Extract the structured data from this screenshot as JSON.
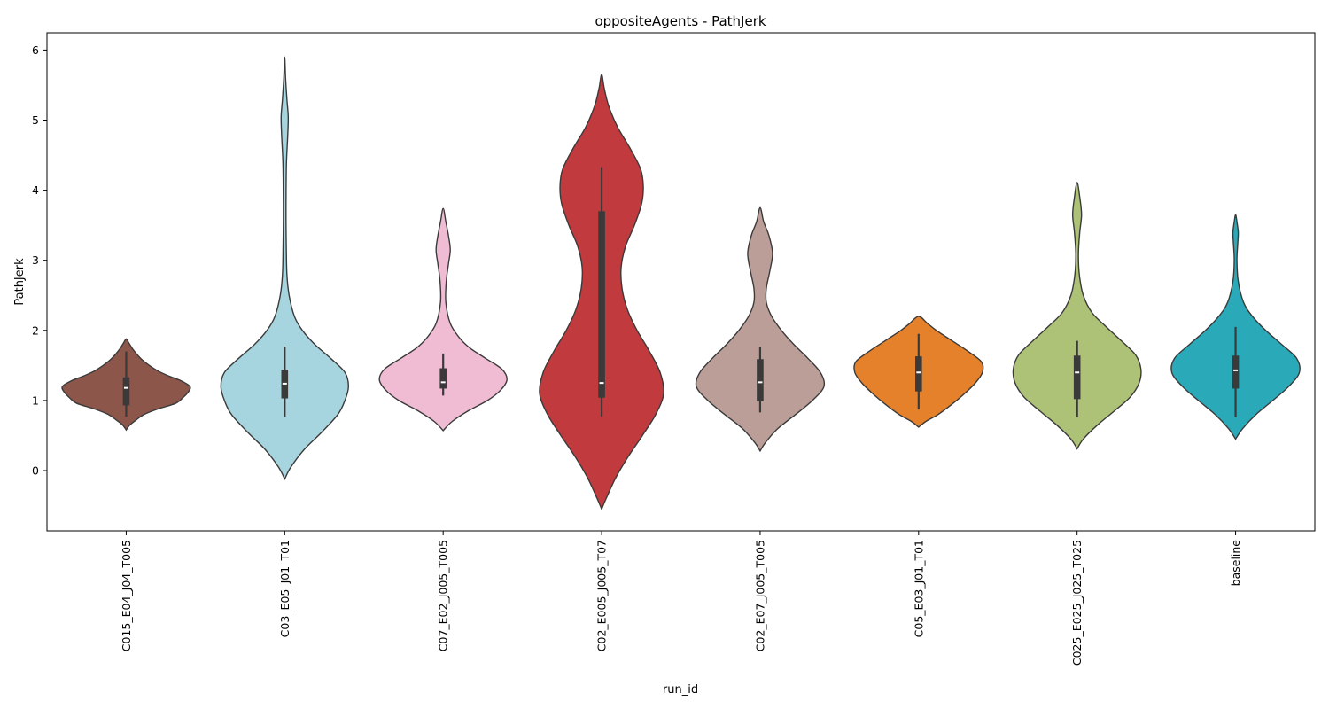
{
  "chart_data": {
    "type": "violin",
    "title": "oppositeAgents - PathJerk",
    "xlabel": "run_id",
    "ylabel": "PathJerk",
    "ylim": [
      -0.85,
      6.2
    ],
    "yticks": [
      "0",
      "1",
      "2",
      "3",
      "4",
      "5",
      "6"
    ],
    "grid": false,
    "categories": [
      "C015_E04_J04_T005",
      "C03_E05_J01_T01",
      "C07_E02_J005_T005",
      "C02_E005_J005_T07",
      "C02_E07_J005_T005",
      "C05_E03_J01_T01",
      "C025_E025_J025_T025",
      "baseline"
    ],
    "series": [
      {
        "color": "#8c564b",
        "range": [
          0.58,
          1.88
        ],
        "box": {
          "q1": 0.93,
          "median": 1.18,
          "q3": 1.33,
          "whisker_low": 0.77,
          "whisker_high": 1.7
        },
        "density": [
          [
            0.58,
            0
          ],
          [
            0.65,
            4
          ],
          [
            0.72,
            11
          ],
          [
            0.8,
            20
          ],
          [
            0.88,
            36
          ],
          [
            0.96,
            56
          ],
          [
            1.04,
            64
          ],
          [
            1.12,
            70
          ],
          [
            1.2,
            72
          ],
          [
            1.28,
            62
          ],
          [
            1.35,
            48
          ],
          [
            1.42,
            36
          ],
          [
            1.5,
            26
          ],
          [
            1.58,
            18
          ],
          [
            1.66,
            12
          ],
          [
            1.74,
            7
          ],
          [
            1.82,
            3
          ],
          [
            1.88,
            0
          ]
        ]
      },
      {
        "color": "#a6d5df",
        "range": [
          -0.12,
          5.9
        ],
        "box": {
          "q1": 1.03,
          "median": 1.24,
          "q3": 1.44,
          "whisker_low": 0.77,
          "whisker_high": 1.77
        },
        "density": [
          [
            -0.12,
            0
          ],
          [
            0.05,
            7
          ],
          [
            0.3,
            22
          ],
          [
            0.55,
            42
          ],
          [
            0.8,
            60
          ],
          [
            1.0,
            68
          ],
          [
            1.2,
            72
          ],
          [
            1.4,
            68
          ],
          [
            1.6,
            52
          ],
          [
            1.8,
            34
          ],
          [
            2.0,
            20
          ],
          [
            2.2,
            11
          ],
          [
            2.5,
            5
          ],
          [
            2.8,
            2.5
          ],
          [
            3.2,
            1.8
          ],
          [
            3.6,
            1.5
          ],
          [
            4.0,
            1.6
          ],
          [
            4.4,
            2
          ],
          [
            4.8,
            3.5
          ],
          [
            5.05,
            4
          ],
          [
            5.3,
            2.5
          ],
          [
            5.6,
            1
          ],
          [
            5.9,
            0
          ]
        ]
      },
      {
        "color": "#f0bcd4",
        "range": [
          0.57,
          3.74
        ],
        "box": {
          "q1": 1.17,
          "median": 1.26,
          "q3": 1.46,
          "whisker_low": 1.07,
          "whisker_high": 1.67
        },
        "density": [
          [
            0.57,
            0
          ],
          [
            0.7,
            10
          ],
          [
            0.85,
            28
          ],
          [
            1.0,
            50
          ],
          [
            1.15,
            65
          ],
          [
            1.3,
            72
          ],
          [
            1.45,
            66
          ],
          [
            1.6,
            48
          ],
          [
            1.75,
            30
          ],
          [
            1.9,
            18
          ],
          [
            2.1,
            8
          ],
          [
            2.4,
            3
          ],
          [
            2.7,
            3.5
          ],
          [
            2.95,
            6
          ],
          [
            3.15,
            8
          ],
          [
            3.35,
            6
          ],
          [
            3.55,
            3
          ],
          [
            3.74,
            0
          ]
        ]
      },
      {
        "color": "#c03a3e",
        "range": [
          -0.55,
          5.65
        ],
        "box": {
          "q1": 1.04,
          "median": 1.25,
          "q3": 3.7,
          "whisker_low": 0.77,
          "whisker_high": 4.33
        },
        "density": [
          [
            -0.55,
            0
          ],
          [
            -0.4,
            5
          ],
          [
            -0.1,
            16
          ],
          [
            0.2,
            30
          ],
          [
            0.5,
            46
          ],
          [
            0.8,
            61
          ],
          [
            1.1,
            70
          ],
          [
            1.4,
            66
          ],
          [
            1.7,
            54
          ],
          [
            2.0,
            40
          ],
          [
            2.3,
            29
          ],
          [
            2.6,
            23
          ],
          [
            2.9,
            22
          ],
          [
            3.2,
            27
          ],
          [
            3.5,
            37
          ],
          [
            3.8,
            45
          ],
          [
            4.05,
            47
          ],
          [
            4.3,
            44
          ],
          [
            4.6,
            32
          ],
          [
            4.9,
            18
          ],
          [
            5.2,
            8
          ],
          [
            5.45,
            3
          ],
          [
            5.65,
            0
          ]
        ]
      },
      {
        "color": "#bc9e98",
        "range": [
          0.28,
          3.75
        ],
        "box": {
          "q1": 0.99,
          "median": 1.26,
          "q3": 1.59,
          "whisker_low": 0.83,
          "whisker_high": 1.76
        },
        "density": [
          [
            0.28,
            0
          ],
          [
            0.4,
            6
          ],
          [
            0.6,
            20
          ],
          [
            0.8,
            40
          ],
          [
            1.0,
            59
          ],
          [
            1.2,
            72
          ],
          [
            1.4,
            68
          ],
          [
            1.6,
            54
          ],
          [
            1.8,
            38
          ],
          [
            2.0,
            24
          ],
          [
            2.2,
            13
          ],
          [
            2.4,
            7
          ],
          [
            2.6,
            7
          ],
          [
            2.85,
            11
          ],
          [
            3.1,
            14
          ],
          [
            3.35,
            10
          ],
          [
            3.55,
            4
          ],
          [
            3.75,
            0
          ]
        ]
      },
      {
        "color": "#e5802b",
        "range": [
          0.62,
          2.2
        ],
        "box": {
          "q1": 1.13,
          "median": 1.4,
          "q3": 1.63,
          "whisker_low": 0.87,
          "whisker_high": 1.95
        },
        "density": [
          [
            0.62,
            0
          ],
          [
            0.7,
            8
          ],
          [
            0.8,
            22
          ],
          [
            0.95,
            38
          ],
          [
            1.1,
            52
          ],
          [
            1.25,
            64
          ],
          [
            1.4,
            72
          ],
          [
            1.55,
            71
          ],
          [
            1.7,
            56
          ],
          [
            1.85,
            38
          ],
          [
            2.0,
            20
          ],
          [
            2.1,
            10
          ],
          [
            2.2,
            0
          ]
        ]
      },
      {
        "color": "#adc277",
        "range": [
          0.31,
          4.11
        ],
        "box": {
          "q1": 1.02,
          "median": 1.4,
          "q3": 1.64,
          "whisker_low": 0.76,
          "whisker_high": 1.85
        },
        "density": [
          [
            0.31,
            0
          ],
          [
            0.45,
            7
          ],
          [
            0.65,
            23
          ],
          [
            0.85,
            42
          ],
          [
            1.05,
            60
          ],
          [
            1.25,
            70
          ],
          [
            1.45,
            72
          ],
          [
            1.65,
            66
          ],
          [
            1.85,
            50
          ],
          [
            2.05,
            33
          ],
          [
            2.25,
            17
          ],
          [
            2.5,
            7
          ],
          [
            2.8,
            2.5
          ],
          [
            3.1,
            1.5
          ],
          [
            3.4,
            3
          ],
          [
            3.65,
            5
          ],
          [
            3.9,
            3
          ],
          [
            4.11,
            0
          ]
        ]
      },
      {
        "color": "#2aa9b8",
        "range": [
          0.45,
          3.65
        ],
        "box": {
          "q1": 1.17,
          "median": 1.43,
          "q3": 1.64,
          "whisker_low": 0.76,
          "whisker_high": 2.05
        },
        "density": [
          [
            0.45,
            0
          ],
          [
            0.6,
            8
          ],
          [
            0.8,
            23
          ],
          [
            1.0,
            42
          ],
          [
            1.2,
            60
          ],
          [
            1.4,
            72
          ],
          [
            1.6,
            69
          ],
          [
            1.8,
            52
          ],
          [
            2.0,
            34
          ],
          [
            2.2,
            19
          ],
          [
            2.4,
            9
          ],
          [
            2.7,
            3
          ],
          [
            3.0,
            1.5
          ],
          [
            3.25,
            2.5
          ],
          [
            3.4,
            3
          ],
          [
            3.55,
            1.5
          ],
          [
            3.65,
            0
          ]
        ]
      }
    ]
  }
}
